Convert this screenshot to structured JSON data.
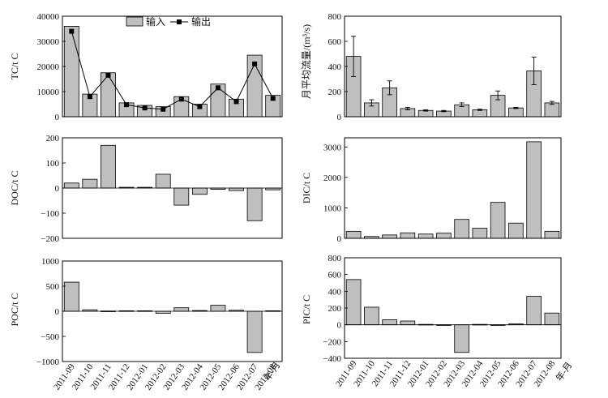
{
  "categories": [
    "2011-09",
    "2011-10",
    "2011-11",
    "2011-12",
    "2012-01",
    "2012-02",
    "2012-03",
    "2012-04",
    "2012-05",
    "2012-06",
    "2012-07",
    "2012-08"
  ],
  "x_unit_label": "年-月",
  "legend": {
    "input": "输入",
    "output": "输出"
  },
  "colors": {
    "bar": "#bfbfbf",
    "line": "#000000"
  },
  "chart_data": [
    {
      "id": "tc",
      "type": "bar+line",
      "ylabel": "TC/t C",
      "ylim": [
        0,
        40000
      ],
      "yticks": [
        "0",
        "10000",
        "20000",
        "30000",
        "40000"
      ],
      "series": [
        {
          "name": "输入",
          "type": "bar",
          "values": [
            36000,
            9000,
            17500,
            5500,
            4500,
            4000,
            8000,
            5000,
            13000,
            7000,
            24500,
            8500
          ]
        },
        {
          "name": "输出",
          "type": "line",
          "values": [
            34000,
            8000,
            16500,
            4800,
            3500,
            3000,
            7000,
            4000,
            11500,
            6000,
            21000,
            7300
          ]
        }
      ]
    },
    {
      "id": "flow",
      "type": "bar",
      "ylabel": "月平均流量/(m³/s)",
      "ylim": [
        0,
        800
      ],
      "yticks": [
        "0",
        "200",
        "400",
        "600",
        "800"
      ],
      "values": [
        480,
        110,
        230,
        65,
        50,
        45,
        95,
        55,
        170,
        70,
        365,
        110
      ],
      "error": [
        160,
        25,
        55,
        10,
        5,
        5,
        15,
        5,
        35,
        5,
        110,
        12
      ]
    },
    {
      "id": "doc",
      "type": "bar",
      "ylabel": "DOC/t C",
      "ylim": [
        -200,
        200
      ],
      "yticks": [
        "−200",
        "−100",
        "0",
        "100",
        "200"
      ],
      "values": [
        20,
        35,
        170,
        3,
        3,
        55,
        -68,
        -25,
        -5,
        -10,
        -130,
        -7
      ]
    },
    {
      "id": "dic",
      "type": "bar",
      "ylabel": "DIC/t C",
      "ylim": [
        0,
        3300
      ],
      "yticks": [
        "0",
        "1000",
        "2000",
        "3000"
      ],
      "values": [
        230,
        60,
        110,
        180,
        140,
        170,
        620,
        330,
        1180,
        500,
        3170,
        230
      ]
    },
    {
      "id": "poc",
      "type": "bar",
      "ylabel": "POC/t C",
      "ylim": [
        -1000,
        1000
      ],
      "yticks": [
        "−1000",
        "−500",
        "0",
        "500",
        "1000"
      ],
      "values": [
        580,
        30,
        5,
        10,
        10,
        -40,
        70,
        15,
        120,
        20,
        -820,
        10
      ]
    },
    {
      "id": "pic",
      "type": "bar",
      "ylabel": "PIC/t C",
      "ylim": [
        -400,
        800
      ],
      "yticks": [
        "−400",
        "−200",
        "0",
        "200",
        "400",
        "600",
        "800"
      ],
      "values": [
        540,
        210,
        60,
        45,
        5,
        -5,
        -330,
        5,
        -5,
        10,
        340,
        140
      ]
    }
  ]
}
